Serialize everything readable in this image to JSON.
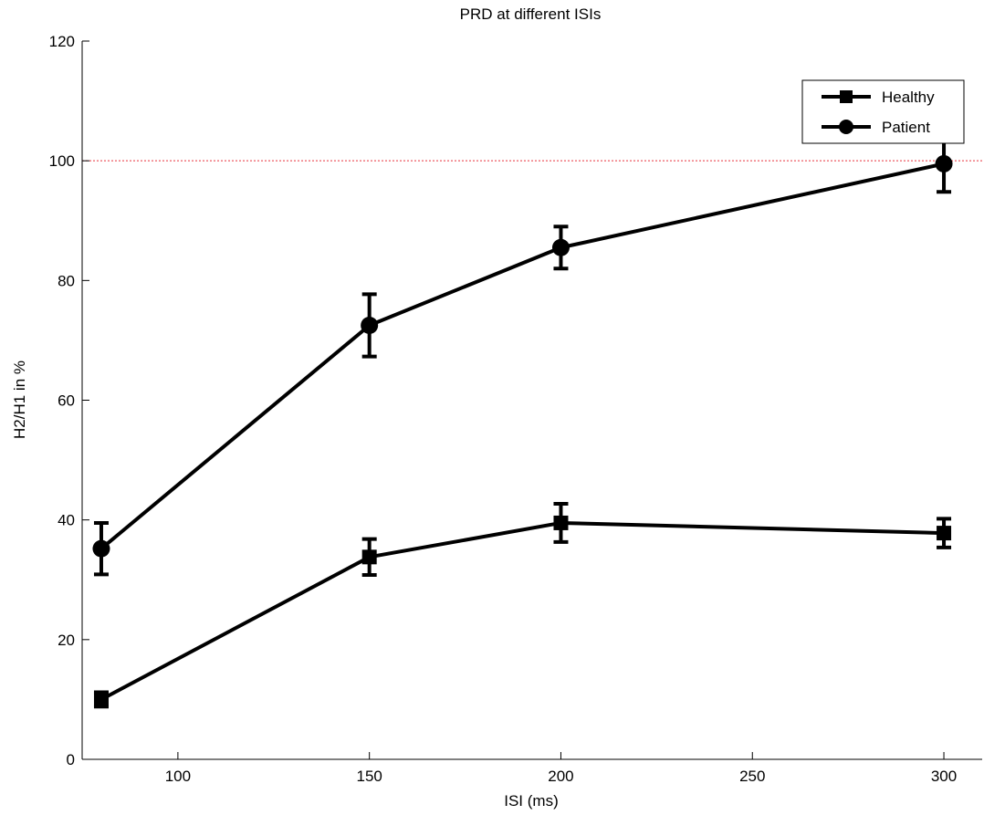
{
  "chart_data": {
    "type": "line",
    "title": "PRD at different ISIs",
    "xlabel": "ISI (ms)",
    "ylabel": "H2/H1 in %",
    "xlim": [
      75,
      310
    ],
    "ylim": [
      0,
      120
    ],
    "xticks": [
      100,
      150,
      200,
      250,
      300
    ],
    "yticks": [
      0,
      20,
      40,
      60,
      80,
      100,
      120
    ],
    "grid": false,
    "legend_position": "top-right",
    "reference_line": {
      "y": 100,
      "color": "#e8303a",
      "style": "dotted"
    },
    "series": [
      {
        "name": "Healthy",
        "marker": "square",
        "color": "#000000",
        "x": [
          80,
          150,
          200,
          300
        ],
        "y": [
          10,
          33.8,
          39.5,
          37.8
        ],
        "err": [
          1.2,
          3.0,
          3.2,
          2.4
        ]
      },
      {
        "name": "Patient",
        "marker": "circle",
        "color": "#000000",
        "x": [
          80,
          150,
          200,
          300
        ],
        "y": [
          35.2,
          72.5,
          85.5,
          99.5
        ],
        "err": [
          4.3,
          5.2,
          3.5,
          4.7
        ]
      }
    ]
  }
}
